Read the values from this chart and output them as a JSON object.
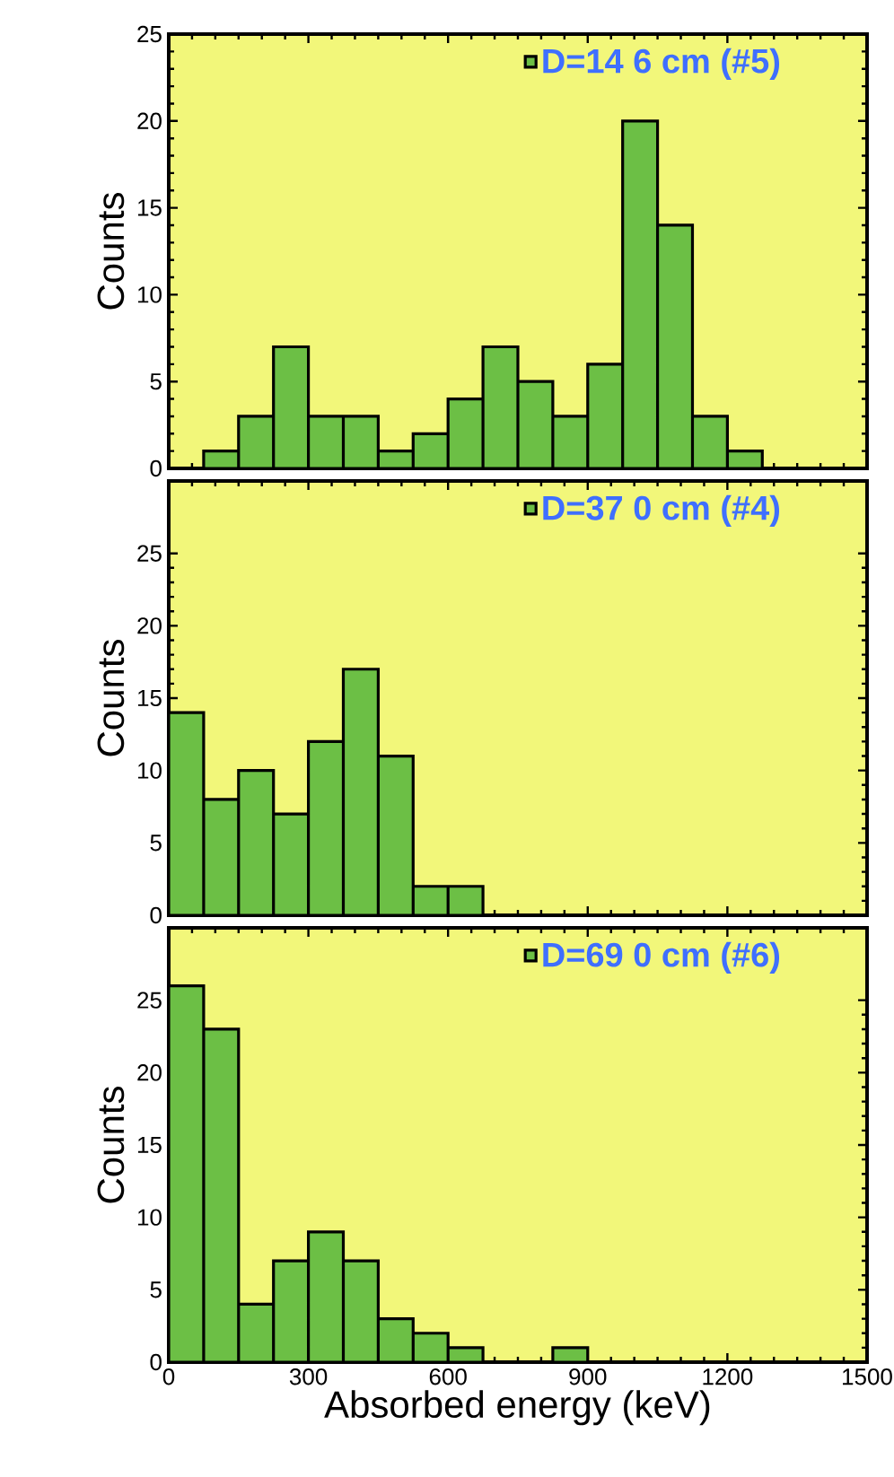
{
  "chart_data": [
    {
      "type": "histogram",
      "bins": [
        0,
        75,
        150,
        225,
        300,
        375,
        450,
        525,
        600,
        675,
        750,
        825,
        900,
        975,
        1050,
        1125,
        1200,
        1275,
        1350,
        1425,
        1500
      ],
      "ylabel": "Counts",
      "xlim": [
        0,
        1500
      ],
      "xticks": [
        0,
        300,
        600,
        900,
        1200,
        1500
      ],
      "ylim": [
        0,
        25
      ],
      "yticks": [
        0,
        5,
        10,
        15,
        20,
        25
      ],
      "tick_labels": "y",
      "legend": "top right",
      "series": [
        {
          "name": "D=14 6 cm (#5)",
          "color": "#6cbf45",
          "values": [
            0,
            1,
            3,
            7,
            3,
            3,
            1,
            2,
            4,
            7,
            5,
            3,
            6,
            20,
            14,
            3,
            1,
            0,
            0,
            0
          ]
        }
      ]
    },
    {
      "type": "histogram",
      "bins": [
        0,
        75,
        150,
        225,
        300,
        375,
        450,
        525,
        600,
        675,
        750,
        825,
        900,
        975,
        1050,
        1125,
        1200,
        1275,
        1350,
        1425,
        1500
      ],
      "ylabel": "Counts",
      "xlim": [
        0,
        1500
      ],
      "xticks": [
        0,
        300,
        600,
        900,
        1200,
        1500
      ],
      "ylim": [
        0,
        30
      ],
      "yticks": [
        0,
        5,
        10,
        15,
        20,
        25
      ],
      "tick_labels": "y",
      "legend": "top right",
      "series": [
        {
          "name": "D=37 0 cm (#4)",
          "color": "#6cbf45",
          "values": [
            14,
            8,
            10,
            7,
            12,
            17,
            11,
            2,
            2,
            0,
            0,
            0,
            0,
            0,
            0,
            0,
            0,
            0,
            0,
            0
          ]
        }
      ]
    },
    {
      "type": "histogram",
      "bins": [
        0,
        75,
        150,
        225,
        300,
        375,
        450,
        525,
        600,
        675,
        750,
        825,
        900,
        975,
        1050,
        1125,
        1200,
        1275,
        1350,
        1425,
        1500
      ],
      "xlabel": "Absorbed energy (keV)",
      "ylabel": "Counts",
      "xlim": [
        0,
        1500
      ],
      "xticks": [
        0,
        300,
        600,
        900,
        1200,
        1500
      ],
      "ylim": [
        0,
        30
      ],
      "yticks": [
        0,
        5,
        10,
        15,
        20,
        25
      ],
      "legend": "top right",
      "series": [
        {
          "name": "D=69 0 cm (#6)",
          "color": "#6cbf45",
          "values": [
            26,
            23,
            4,
            7,
            9,
            7,
            3,
            2,
            1,
            0,
            0,
            1,
            0,
            0,
            0,
            0,
            0,
            0,
            0,
            0
          ]
        }
      ]
    }
  ]
}
